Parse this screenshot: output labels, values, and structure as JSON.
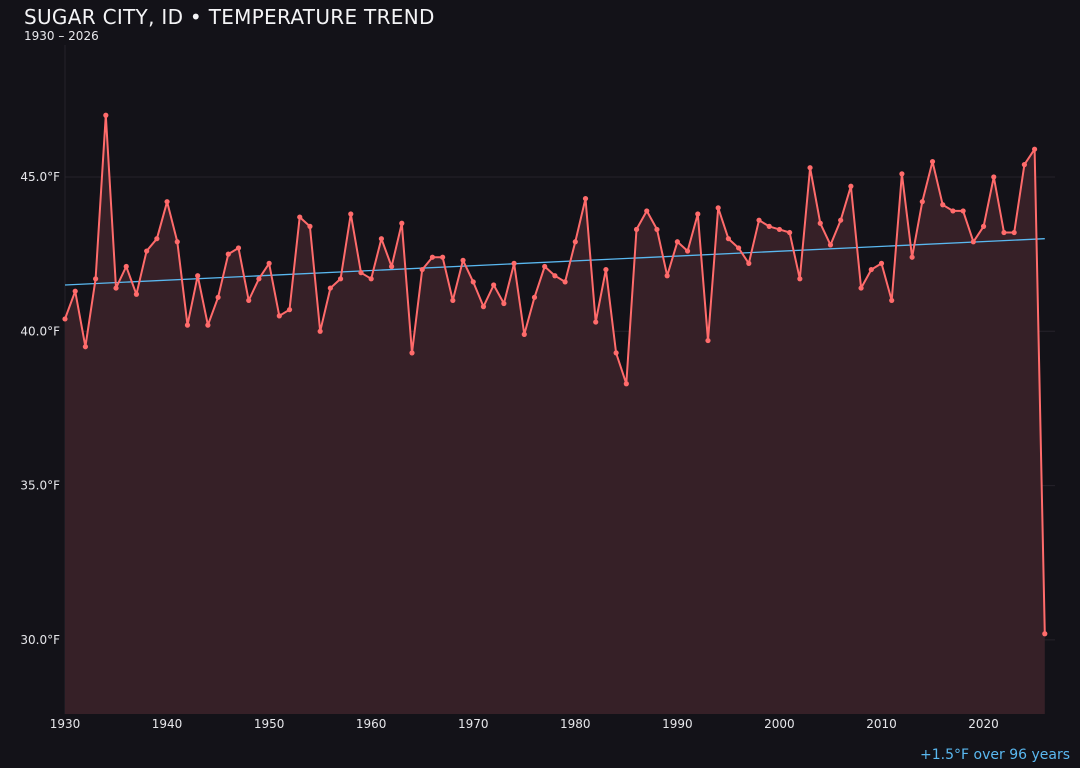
{
  "chart_data": {
    "type": "line",
    "title": "SUGAR CITY, ID • TEMPERATURE TREND",
    "subtitle": "1930 – 2026",
    "annotation": "+1.5°F over 96 years",
    "xlabel": "",
    "ylabel": "",
    "xlim": [
      1930,
      2027
    ],
    "ylim": [
      27.6,
      49.6
    ],
    "x_ticks": [
      "1930",
      "1940",
      "1950",
      "1960",
      "1970",
      "1980",
      "1990",
      "2000",
      "2010",
      "2020"
    ],
    "y_ticks": [
      "30.0°F",
      "35.0°F",
      "40.0°F",
      "45.0°F"
    ],
    "y_tick_values": [
      30,
      35,
      40,
      45
    ],
    "grid": "horizontal",
    "colors": {
      "line": "#ff6b6b",
      "fill": "#362027",
      "trend": "#5ab8f0",
      "background": "#131218"
    },
    "series": [
      {
        "x": [
          1930,
          1931,
          1932,
          1933,
          1934,
          1935,
          1936,
          1937,
          1938,
          1939,
          1940,
          1941,
          1942,
          1943,
          1944,
          1945,
          1946,
          1947,
          1948,
          1949,
          1950,
          1951,
          1952,
          1953,
          1954,
          1955,
          1956,
          1957,
          1958,
          1959,
          1960,
          1961,
          1962,
          1963,
          1964,
          1965,
          1966,
          1967,
          1968,
          1969,
          1970,
          1971,
          1972,
          1973,
          1974,
          1975,
          1976,
          1977,
          1978,
          1979,
          1980,
          1981,
          1982,
          1983,
          1984,
          1985,
          1986,
          1987,
          1988,
          1989,
          1990,
          1991,
          1992,
          1993,
          1994,
          1995,
          1996,
          1997,
          1998,
          1999,
          2000,
          2001,
          2002,
          2003,
          2004,
          2005,
          2006,
          2007,
          2008,
          2009,
          2010,
          2011,
          2012,
          2013,
          2014,
          2015,
          2016,
          2017,
          2018,
          2019,
          2020,
          2021,
          2022,
          2023,
          2024,
          2025,
          2026
        ],
        "values": [
          40.4,
          41.3,
          39.5,
          41.7,
          47.0,
          41.4,
          42.1,
          41.2,
          42.6,
          43.0,
          44.2,
          42.9,
          40.2,
          41.8,
          40.2,
          41.1,
          42.5,
          42.7,
          41.0,
          41.7,
          42.2,
          40.5,
          40.7,
          43.7,
          43.4,
          40.0,
          41.4,
          41.7,
          43.8,
          41.9,
          41.7,
          43.0,
          42.1,
          43.5,
          39.3,
          42.0,
          42.4,
          42.4,
          41.0,
          42.3,
          41.6,
          40.8,
          41.5,
          40.9,
          42.2,
          39.9,
          41.1,
          42.1,
          41.8,
          41.6,
          42.9,
          44.3,
          40.3,
          42.0,
          39.3,
          38.3,
          43.3,
          43.9,
          43.3,
          41.8,
          42.9,
          42.6,
          43.8,
          39.7,
          44.0,
          43.0,
          42.7,
          42.2,
          43.6,
          43.4,
          43.3,
          43.2,
          41.7,
          45.3,
          43.5,
          42.8,
          43.6,
          44.7,
          41.4,
          42.0,
          42.2,
          41.0,
          45.1,
          42.4,
          44.2,
          45.5,
          44.1,
          43.9,
          43.9,
          42.9,
          43.4,
          45.0,
          43.2,
          43.2,
          45.4,
          45.9,
          30.2
        ]
      }
    ],
    "trend": {
      "x": [
        1930,
        2026
      ],
      "values": [
        41.5,
        43.0
      ]
    }
  }
}
